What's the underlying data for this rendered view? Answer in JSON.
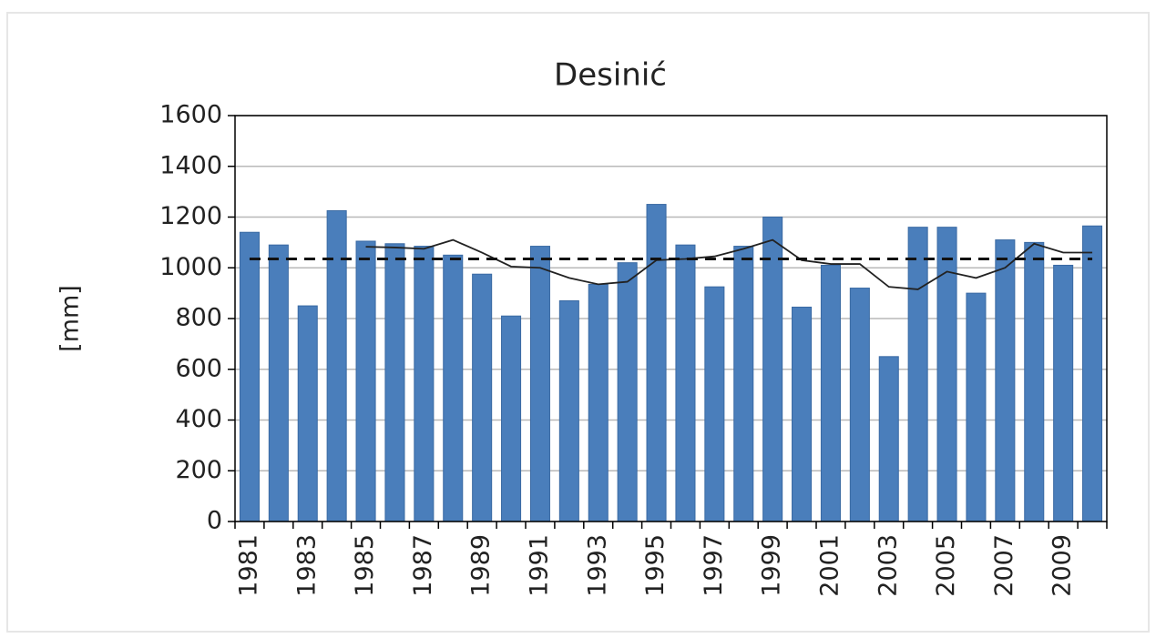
{
  "chart_data": {
    "type": "bar",
    "title": "Desinić",
    "y_label": "[mm]",
    "categories": [
      "1981",
      null,
      "1983",
      null,
      "1985",
      null,
      "1987",
      null,
      "1989",
      null,
      "1991",
      null,
      "1993",
      null,
      "1995",
      null,
      "1997",
      null,
      "1999",
      null,
      "2001",
      null,
      "2003",
      null,
      "2005",
      null,
      "2007",
      null,
      "2009",
      null
    ],
    "series": [
      {
        "type": "bar",
        "color": "#4a7ebb",
        "values": [
          1140,
          1090,
          850,
          1225,
          1105,
          1095,
          1085,
          1050,
          975,
          810,
          1085,
          870,
          935,
          1020,
          1250,
          1090,
          925,
          1085,
          1200,
          845,
          1010,
          920,
          650,
          1160,
          1160,
          900,
          1110,
          1100,
          1010,
          1165
        ]
      },
      {
        "type": "line",
        "color": "#222222",
        "values": [
          null,
          null,
          null,
          null,
          1083,
          1080,
          1075,
          1110,
          1060,
          1005,
          1000,
          960,
          935,
          945,
          1030,
          1035,
          1045,
          1075,
          1110,
          1030,
          1015,
          1015,
          925,
          915,
          985,
          960,
          1000,
          1095,
          1060,
          1060
        ]
      }
    ],
    "reference_line": {
      "value": 1035,
      "color": "#111111",
      "dashed": true
    },
    "ylim": [
      0,
      1600
    ],
    "yticks": [
      0,
      200,
      400,
      600,
      800,
      1000,
      1200,
      1400,
      1600
    ],
    "grid": true
  }
}
